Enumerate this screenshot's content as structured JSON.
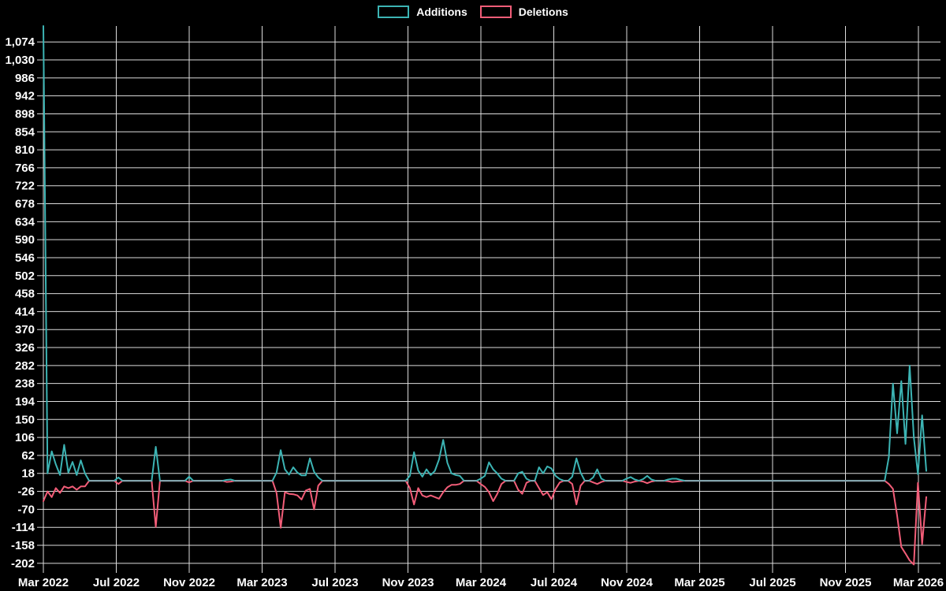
{
  "colors": {
    "background": "#000000",
    "grid": "#dcdcdc",
    "text": "#ffffff",
    "additions": "#3cb4b4",
    "deletions": "#f25d78",
    "baseline_overlap": "#85a3ad"
  },
  "legend": [
    {
      "label": "Additions",
      "color": "#3cb4b4"
    },
    {
      "label": "Deletions",
      "color": "#f25d78"
    }
  ],
  "chart_data": {
    "type": "line",
    "title": "",
    "xlabel": "",
    "ylabel": "",
    "grid": true,
    "legend_position": "top-center",
    "x_axis": {
      "granularity": "weekly",
      "start": "Mar 2022",
      "end": "Mar 2026",
      "tick_labels": [
        "Mar 2022",
        "Jul 2022",
        "Nov 2022",
        "Mar 2023",
        "Jul 2023",
        "Nov 2023",
        "Mar 2024",
        "Jul 2024",
        "Nov 2024",
        "Mar 2025",
        "Jul 2025",
        "Nov 2025",
        "Mar 2026"
      ]
    },
    "y_axis": {
      "range": [
        -212,
        1113
      ],
      "tick_step": 44,
      "ticks": [
        -202,
        -158,
        -114,
        -70,
        -26,
        18,
        62,
        106,
        150,
        194,
        238,
        282,
        326,
        370,
        414,
        458,
        502,
        546,
        590,
        634,
        678,
        722,
        766,
        810,
        854,
        898,
        942,
        986,
        1030,
        1074
      ],
      "tick_labels": [
        "-202",
        "-158",
        "-114",
        "-70",
        "-26",
        "18",
        "62",
        "106",
        "150",
        "194",
        "238",
        "282",
        "326",
        "370",
        "414",
        "458",
        "502",
        "546",
        "590",
        "634",
        "678",
        "722",
        "766",
        "810",
        "854",
        "898",
        "942",
        "986",
        "1,030",
        "1,074"
      ]
    },
    "series": [
      {
        "name": "Additions",
        "color": "#3cb4b4",
        "values": [
          1113,
          18,
          72,
          40,
          14,
          88,
          20,
          46,
          14,
          50,
          18,
          0,
          0,
          0,
          0,
          0,
          0,
          0,
          8,
          0,
          0,
          0,
          0,
          0,
          0,
          0,
          0,
          83,
          0,
          0,
          0,
          0,
          0,
          0,
          0,
          10,
          0,
          0,
          0,
          0,
          0,
          0,
          0,
          0,
          2,
          3,
          0,
          0,
          0,
          0,
          0,
          0,
          0,
          0,
          0,
          0,
          20,
          75,
          28,
          15,
          33,
          20,
          13,
          13,
          55,
          22,
          8,
          0,
          0,
          0,
          0,
          0,
          0,
          0,
          0,
          0,
          0,
          0,
          0,
          0,
          0,
          0,
          0,
          0,
          0,
          0,
          0,
          0,
          12,
          70,
          25,
          10,
          28,
          14,
          24,
          52,
          100,
          44,
          18,
          14,
          12,
          0,
          0,
          0,
          0,
          5,
          12,
          45,
          28,
          18,
          5,
          0,
          0,
          0,
          18,
          22,
          5,
          0,
          0,
          33,
          18,
          35,
          30,
          12,
          4,
          0,
          0,
          10,
          55,
          20,
          0,
          0,
          8,
          28,
          5,
          0,
          0,
          0,
          0,
          0,
          5,
          9,
          3,
          0,
          4,
          12,
          3,
          0,
          0,
          0,
          3,
          5,
          5,
          2,
          0,
          0,
          0,
          0,
          0,
          0,
          0,
          0,
          0,
          0,
          0,
          0,
          0,
          0,
          0,
          0,
          0,
          0,
          0,
          0,
          0,
          0,
          0,
          0,
          0,
          0,
          0,
          0,
          0,
          0,
          0,
          0,
          0,
          0,
          0,
          0,
          0,
          0,
          0,
          0,
          0,
          0,
          0,
          0,
          0,
          0,
          0,
          0,
          0,
          58,
          238,
          116,
          244,
          90,
          282,
          106,
          16,
          160,
          24
        ]
      },
      {
        "name": "Deletions",
        "color": "#f25d78",
        "values": [
          -50,
          -26,
          -40,
          -18,
          -30,
          -14,
          -18,
          -14,
          -22,
          -14,
          -14,
          0,
          0,
          0,
          0,
          0,
          0,
          0,
          -8,
          0,
          0,
          0,
          0,
          0,
          0,
          0,
          0,
          -113,
          0,
          0,
          0,
          0,
          0,
          0,
          0,
          -4,
          0,
          0,
          0,
          0,
          0,
          0,
          0,
          0,
          -3,
          -2,
          0,
          0,
          0,
          0,
          0,
          0,
          0,
          0,
          0,
          0,
          -30,
          -115,
          -28,
          -32,
          -33,
          -36,
          -46,
          -24,
          -20,
          -70,
          -12,
          0,
          0,
          0,
          0,
          0,
          0,
          0,
          0,
          0,
          0,
          0,
          0,
          0,
          0,
          0,
          0,
          0,
          0,
          0,
          0,
          0,
          -18,
          -58,
          -18,
          -36,
          -40,
          -36,
          -40,
          -44,
          -28,
          -16,
          -10,
          -10,
          -8,
          0,
          0,
          0,
          0,
          -8,
          -15,
          -28,
          -50,
          -32,
          -8,
          0,
          0,
          0,
          -22,
          -32,
          -5,
          0,
          0,
          -18,
          -35,
          -28,
          -45,
          -20,
          -4,
          0,
          0,
          -8,
          -58,
          -12,
          0,
          0,
          -4,
          -8,
          -3,
          0,
          0,
          0,
          0,
          0,
          -3,
          -5,
          -2,
          0,
          -2,
          -6,
          -2,
          0,
          0,
          0,
          -1,
          -3,
          -2,
          -1,
          0,
          0,
          0,
          0,
          0,
          0,
          0,
          0,
          0,
          0,
          0,
          0,
          0,
          0,
          0,
          0,
          0,
          0,
          0,
          0,
          0,
          0,
          0,
          0,
          0,
          0,
          0,
          0,
          0,
          0,
          0,
          0,
          0,
          0,
          0,
          0,
          0,
          0,
          0,
          0,
          0,
          0,
          0,
          0,
          0,
          0,
          0,
          0,
          0,
          -8,
          -20,
          -85,
          -162,
          -178,
          -195,
          -205,
          -5,
          -155,
          -40
        ]
      }
    ]
  }
}
